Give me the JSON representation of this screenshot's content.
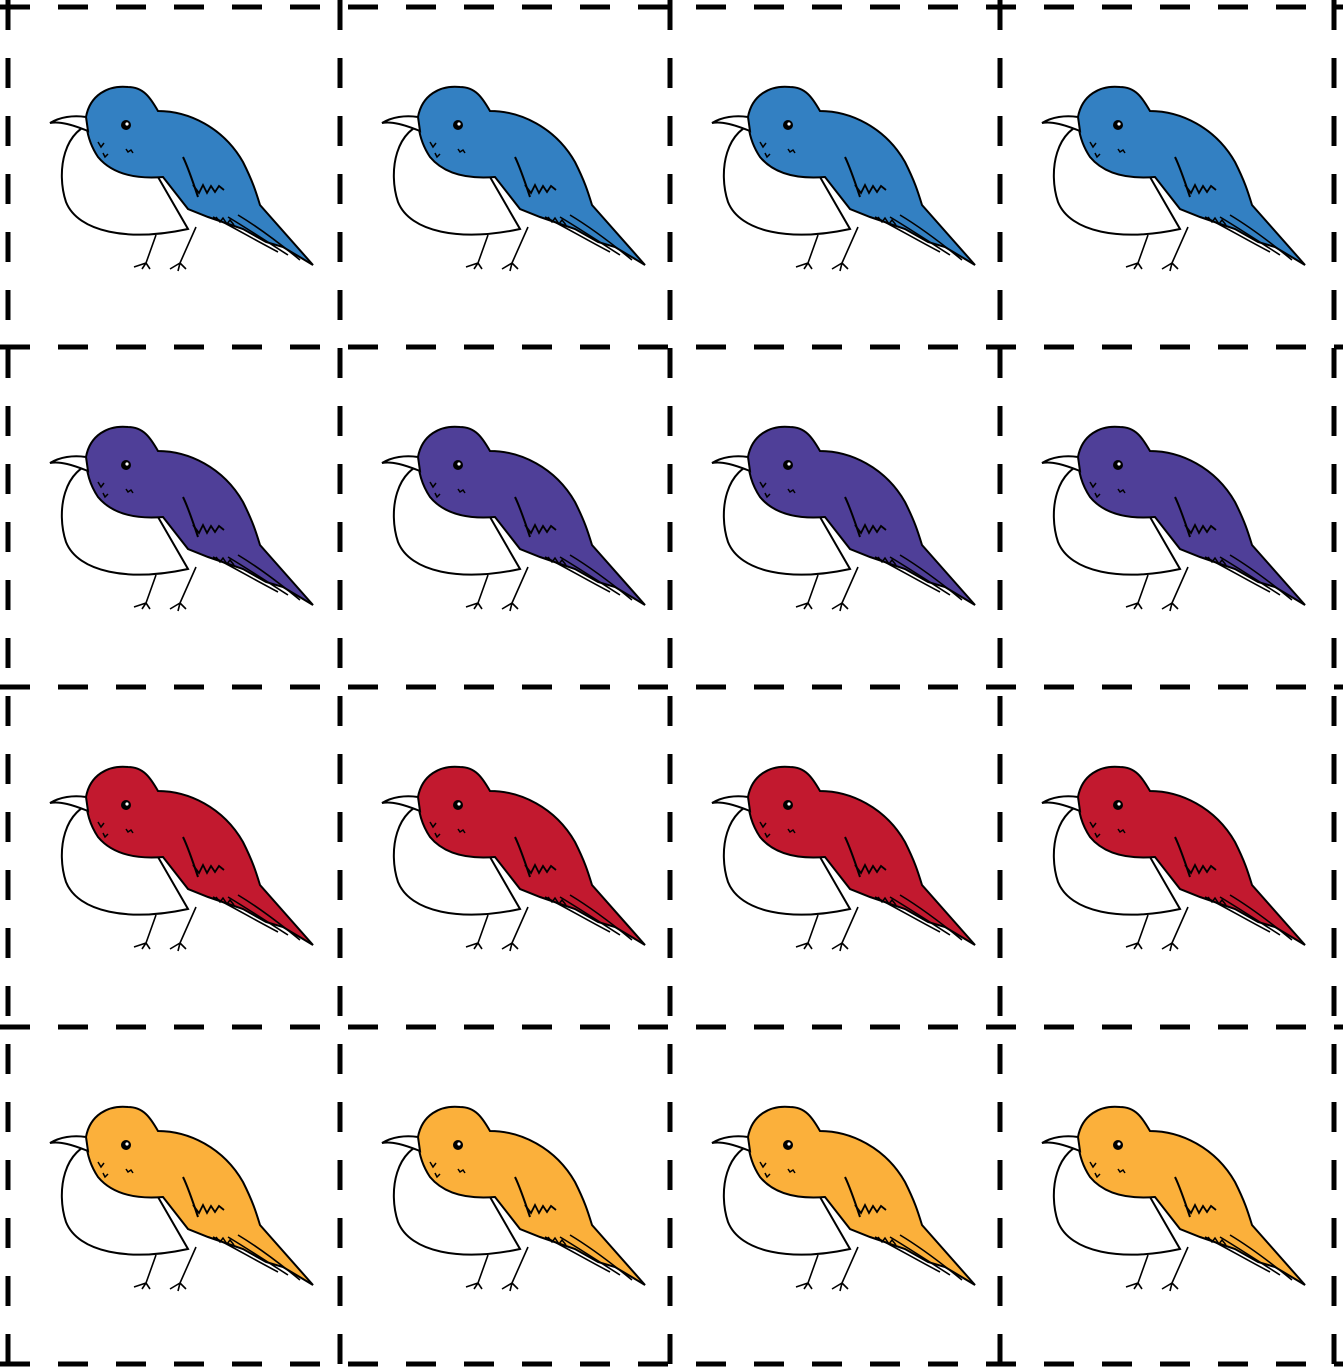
{
  "sheet": {
    "rows": 4,
    "columns": 4,
    "cut_line_color": "#000000",
    "background": "#ffffff"
  },
  "cards": {
    "icon": "bird-icon",
    "rows": [
      {
        "color_name": "blue",
        "fill": "#3380C2",
        "count": 4
      },
      {
        "color_name": "purple",
        "fill": "#4F3F98",
        "count": 4
      },
      {
        "color_name": "red",
        "fill": "#C2192F",
        "count": 4
      },
      {
        "color_name": "yellow",
        "fill": "#FBB03B",
        "count": 4
      }
    ]
  }
}
